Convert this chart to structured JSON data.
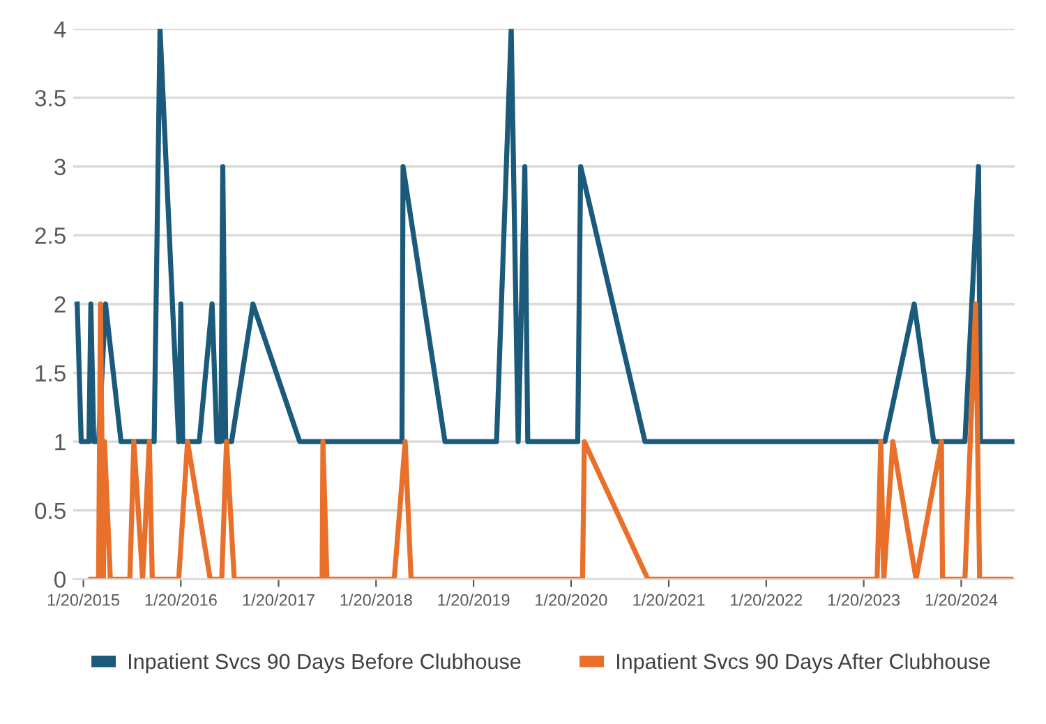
{
  "chart_data": {
    "type": "line",
    "xlim": [
      "2014-12-13",
      "2024-08-07"
    ],
    "xticks": [
      {
        "value": "2015-01-20",
        "label": "1/20/2015"
      },
      {
        "value": "2016-01-20",
        "label": "1/20/2016"
      },
      {
        "value": "2017-01-20",
        "label": "1/20/2017"
      },
      {
        "value": "2018-01-20",
        "label": "1/20/2018"
      },
      {
        "value": "2019-01-20",
        "label": "1/20/2019"
      },
      {
        "value": "2020-01-20",
        "label": "1/20/2020"
      },
      {
        "value": "2021-01-20",
        "label": "1/20/2021"
      },
      {
        "value": "2022-01-20",
        "label": "1/20/2022"
      },
      {
        "value": "2023-01-20",
        "label": "1/20/2023"
      },
      {
        "value": "2024-01-20",
        "label": "1/20/2024"
      }
    ],
    "ylim": [
      0,
      4
    ],
    "yticks": [
      0,
      0.5,
      1,
      1.5,
      2,
      2.5,
      3,
      3.5,
      4
    ],
    "grid": "y",
    "legend": "bottom",
    "marker": "none",
    "line_style": "solid",
    "series": [
      {
        "name": "Inpatient Svcs 90 Days Before Clubhouse",
        "color": "#1b5a7a",
        "x": [
          "2014-12-28",
          "2015-01-12",
          "2015-02-10",
          "2015-02-17",
          "2015-02-28",
          "2015-03-18",
          "2015-04-13",
          "2015-06-10",
          "2015-10-12",
          "2015-11-03",
          "2016-01-12",
          "2016-01-20",
          "2016-01-27",
          "2016-03-29",
          "2016-05-16",
          "2016-06-03",
          "2016-06-18",
          "2016-06-25",
          "2016-07-06",
          "2016-07-28",
          "2016-10-16",
          "2017-04-09",
          "2018-04-27",
          "2018-05-01",
          "2018-10-05",
          "2019-04-16",
          "2019-06-10",
          "2019-07-06",
          "2019-07-31",
          "2019-08-11",
          "2020-02-14",
          "2020-02-25",
          "2020-10-23",
          "2023-04-09",
          "2023-07-28",
          "2023-10-09",
          "2024-02-03",
          "2024-03-25",
          "2024-04-01",
          "2024-07-28"
        ],
        "values": [
          2,
          1,
          1,
          2,
          1,
          1,
          2,
          1,
          1,
          4,
          1,
          2,
          1,
          1,
          2,
          1,
          1,
          3,
          1,
          1,
          2,
          1,
          1,
          3,
          1,
          1,
          4,
          1,
          3,
          1,
          1,
          3,
          1,
          1,
          2,
          1,
          1,
          3,
          1,
          1
        ]
      },
      {
        "name": "Inpatient Svcs 90 Days After Clubhouse",
        "color": "#e8702a",
        "x": [
          "2015-02-17",
          "2015-03-18",
          "2015-03-25",
          "2015-04-05",
          "2015-04-09",
          "2015-05-01",
          "2015-07-13",
          "2015-07-28",
          "2015-08-30",
          "2015-09-24",
          "2015-10-05",
          "2016-01-12",
          "2016-02-14",
          "2016-05-09",
          "2016-06-21",
          "2016-07-09",
          "2016-08-07",
          "2017-07-02",
          "2017-07-05",
          "2017-07-20",
          "2018-03-29",
          "2018-05-09",
          "2018-05-31",
          "2020-03-03",
          "2020-03-10",
          "2020-11-03",
          "2023-03-11",
          "2023-03-25",
          "2023-04-05",
          "2023-05-09",
          "2023-08-04",
          "2023-11-07",
          "2023-11-11",
          "2024-02-03",
          "2024-03-14",
          "2024-03-29",
          "2024-07-24"
        ],
        "values": [
          0,
          0,
          2,
          0,
          1,
          0,
          0,
          1,
          0,
          1,
          0,
          0,
          1,
          0,
          0,
          1,
          0,
          0,
          1,
          0,
          0,
          1,
          0,
          0,
          1,
          0,
          0,
          1,
          0,
          1,
          0,
          1,
          0,
          0,
          2,
          0,
          0
        ]
      }
    ]
  }
}
